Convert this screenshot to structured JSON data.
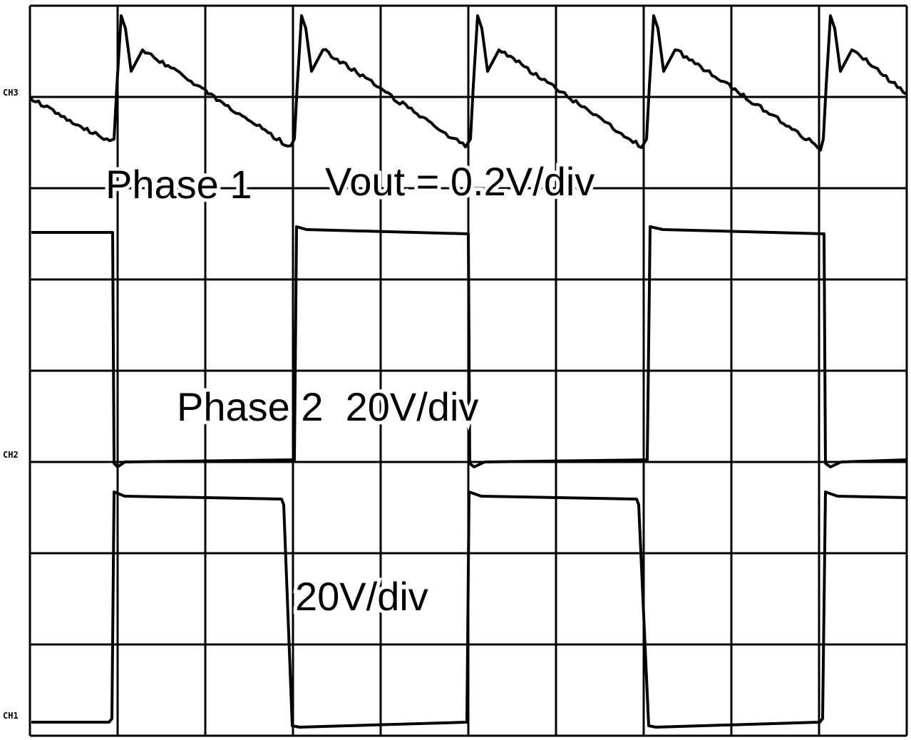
{
  "channels": [
    {
      "label": "CH3"
    },
    {
      "label": "CH2"
    },
    {
      "label": "CH1"
    }
  ],
  "annotations": {
    "phase1": "Phase 1",
    "vout": "Vout = 0.2V/div",
    "phase2": "Phase 2  20V/div",
    "ch1_scale": "20V/div"
  }
}
